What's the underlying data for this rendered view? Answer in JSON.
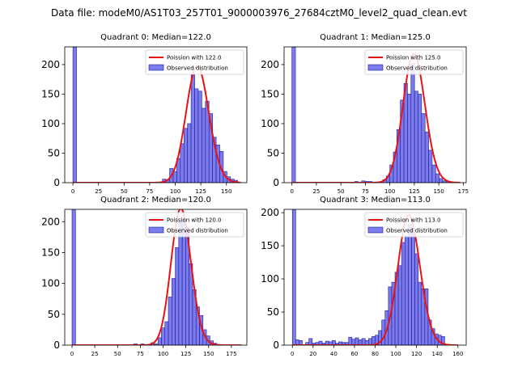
{
  "figure_title": "Data file: modeM0/AS1T03_257T01_9000003976_27684cztM0_level2_quad_clean.evt",
  "colors": {
    "bar_fill": "#7b7bea",
    "bar_edge": "#1a1aa6",
    "poisson_line": "#ee1111"
  },
  "chart_data": [
    {
      "type": "bar",
      "title": "Quadrant 0: Median=122.0",
      "xlim": [
        -8,
        170
      ],
      "ylim": [
        0,
        230
      ],
      "xticks": [
        0,
        25,
        50,
        75,
        100,
        125,
        150
      ],
      "yticks": [
        0,
        50,
        100,
        150,
        200
      ],
      "bin_width": 3.5,
      "bins": [
        [
          0,
          230
        ],
        [
          80.5,
          1
        ],
        [
          84,
          1
        ],
        [
          87.5,
          6
        ],
        [
          91,
          5
        ],
        [
          94.5,
          24
        ],
        [
          98,
          19
        ],
        [
          101.5,
          41
        ],
        [
          105,
          66
        ],
        [
          108.5,
          92
        ],
        [
          112,
          100
        ],
        [
          115.5,
          183
        ],
        [
          119,
          159
        ],
        [
          122.5,
          155
        ],
        [
          126,
          126
        ],
        [
          129.5,
          138
        ],
        [
          133,
          117
        ],
        [
          136.5,
          77
        ],
        [
          140,
          64
        ],
        [
          143.5,
          53
        ],
        [
          147,
          19
        ],
        [
          150.5,
          10
        ],
        [
          154,
          6
        ],
        [
          157.5,
          4
        ]
      ],
      "poisson_mean": 122.0,
      "poisson_x_range": [
        0,
        164
      ],
      "legend": [
        "Poission with 122.0",
        "Observed distribution"
      ]
    },
    {
      "type": "bar",
      "title": "Quadrant 1: Median=125.0",
      "xlim": [
        -8,
        178
      ],
      "ylim": [
        0,
        230
      ],
      "xticks": [
        0,
        25,
        50,
        75,
        100,
        125,
        150,
        175
      ],
      "yticks": [
        0,
        50,
        100,
        150,
        200
      ],
      "bin_width": 3.6,
      "bins": [
        [
          0,
          230
        ],
        [
          64,
          2
        ],
        [
          67.6,
          1
        ],
        [
          71.2,
          3
        ],
        [
          74.8,
          2
        ],
        [
          78.4,
          2
        ],
        [
          82,
          1
        ],
        [
          92.8,
          5
        ],
        [
          96.4,
          11
        ],
        [
          100,
          30
        ],
        [
          103.6,
          52
        ],
        [
          107.2,
          90
        ],
        [
          110.8,
          140
        ],
        [
          114.4,
          168
        ],
        [
          118,
          150
        ],
        [
          121.6,
          202
        ],
        [
          125.2,
          155
        ],
        [
          128.8,
          150
        ],
        [
          132.4,
          117
        ],
        [
          136,
          86
        ],
        [
          139.6,
          55
        ],
        [
          143.2,
          30
        ],
        [
          146.8,
          15
        ],
        [
          150.4,
          7
        ],
        [
          154,
          3
        ],
        [
          157.6,
          2
        ]
      ],
      "poisson_mean": 125.0,
      "poisson_x_range": [
        0,
        172
      ],
      "legend": [
        "Poission with 125.0",
        "Observed distribution"
      ]
    },
    {
      "type": "bar",
      "title": "Quadrant 2: Median=120.0",
      "xlim": [
        -8,
        192
      ],
      "ylim": [
        0,
        220
      ],
      "xticks": [
        0,
        25,
        50,
        75,
        100,
        125,
        150,
        175
      ],
      "yticks": [
        0,
        50,
        100,
        150,
        200
      ],
      "bin_width": 3.8,
      "bins": [
        [
          0,
          220
        ],
        [
          64,
          1
        ],
        [
          67.8,
          2
        ],
        [
          75.4,
          2
        ],
        [
          83,
          1
        ],
        [
          86.8,
          4
        ],
        [
          90.6,
          2
        ],
        [
          94.4,
          12
        ],
        [
          98.2,
          28
        ],
        [
          102,
          38
        ],
        [
          105.8,
          78
        ],
        [
          109.6,
          108
        ],
        [
          113.4,
          158
        ],
        [
          117.2,
          200
        ],
        [
          121,
          205
        ],
        [
          124.8,
          190
        ],
        [
          128.6,
          132
        ],
        [
          132.4,
          90
        ],
        [
          136.2,
          62
        ],
        [
          140,
          48
        ],
        [
          143.8,
          25
        ],
        [
          147.6,
          15
        ],
        [
          151.4,
          7
        ],
        [
          155.2,
          3
        ],
        [
          159,
          1
        ]
      ],
      "poisson_mean": 120.0,
      "poisson_x_range": [
        0,
        186
      ],
      "legend": [
        "Poission with 120.0",
        "Observed distribution"
      ]
    },
    {
      "type": "bar",
      "title": "Quadrant 3: Median=113.0",
      "xlim": [
        -8,
        168
      ],
      "ylim": [
        0,
        205
      ],
      "xticks": [
        0,
        20,
        40,
        60,
        80,
        100,
        120,
        140,
        160
      ],
      "yticks": [
        0,
        50,
        100,
        150,
        200
      ],
      "bin_width": 3.2,
      "bins": [
        [
          0,
          205
        ],
        [
          3.2,
          8
        ],
        [
          6.4,
          7
        ],
        [
          12.8,
          4
        ],
        [
          16,
          10
        ],
        [
          19.2,
          3
        ],
        [
          22.4,
          4
        ],
        [
          25.6,
          6
        ],
        [
          28.8,
          3
        ],
        [
          32,
          6
        ],
        [
          35.2,
          5
        ],
        [
          38.4,
          7
        ],
        [
          41.6,
          3
        ],
        [
          44.8,
          5
        ],
        [
          48,
          4
        ],
        [
          51.2,
          4
        ],
        [
          54.4,
          12
        ],
        [
          57.6,
          9
        ],
        [
          60.8,
          11
        ],
        [
          64,
          8
        ],
        [
          67.2,
          10
        ],
        [
          70.4,
          7
        ],
        [
          73.6,
          10
        ],
        [
          76.8,
          13
        ],
        [
          80,
          15
        ],
        [
          83.2,
          22
        ],
        [
          86.4,
          38
        ],
        [
          89.6,
          52
        ],
        [
          92.8,
          88
        ],
        [
          96,
          95
        ],
        [
          99.2,
          110
        ],
        [
          102.4,
          120
        ],
        [
          105.6,
          155
        ],
        [
          108.8,
          165
        ],
        [
          112,
          182
        ],
        [
          115.2,
          176
        ],
        [
          118.4,
          138
        ],
        [
          121.6,
          95
        ],
        [
          124.8,
          85
        ],
        [
          128,
          85
        ],
        [
          131.2,
          38
        ],
        [
          134.4,
          25
        ],
        [
          137.6,
          17
        ],
        [
          140.8,
          15
        ],
        [
          144,
          13
        ]
      ],
      "poisson_mean": 113.0,
      "poisson_x_range": [
        0,
        160
      ],
      "legend": [
        "Poission with 113.0",
        "Observed distribution"
      ]
    }
  ]
}
